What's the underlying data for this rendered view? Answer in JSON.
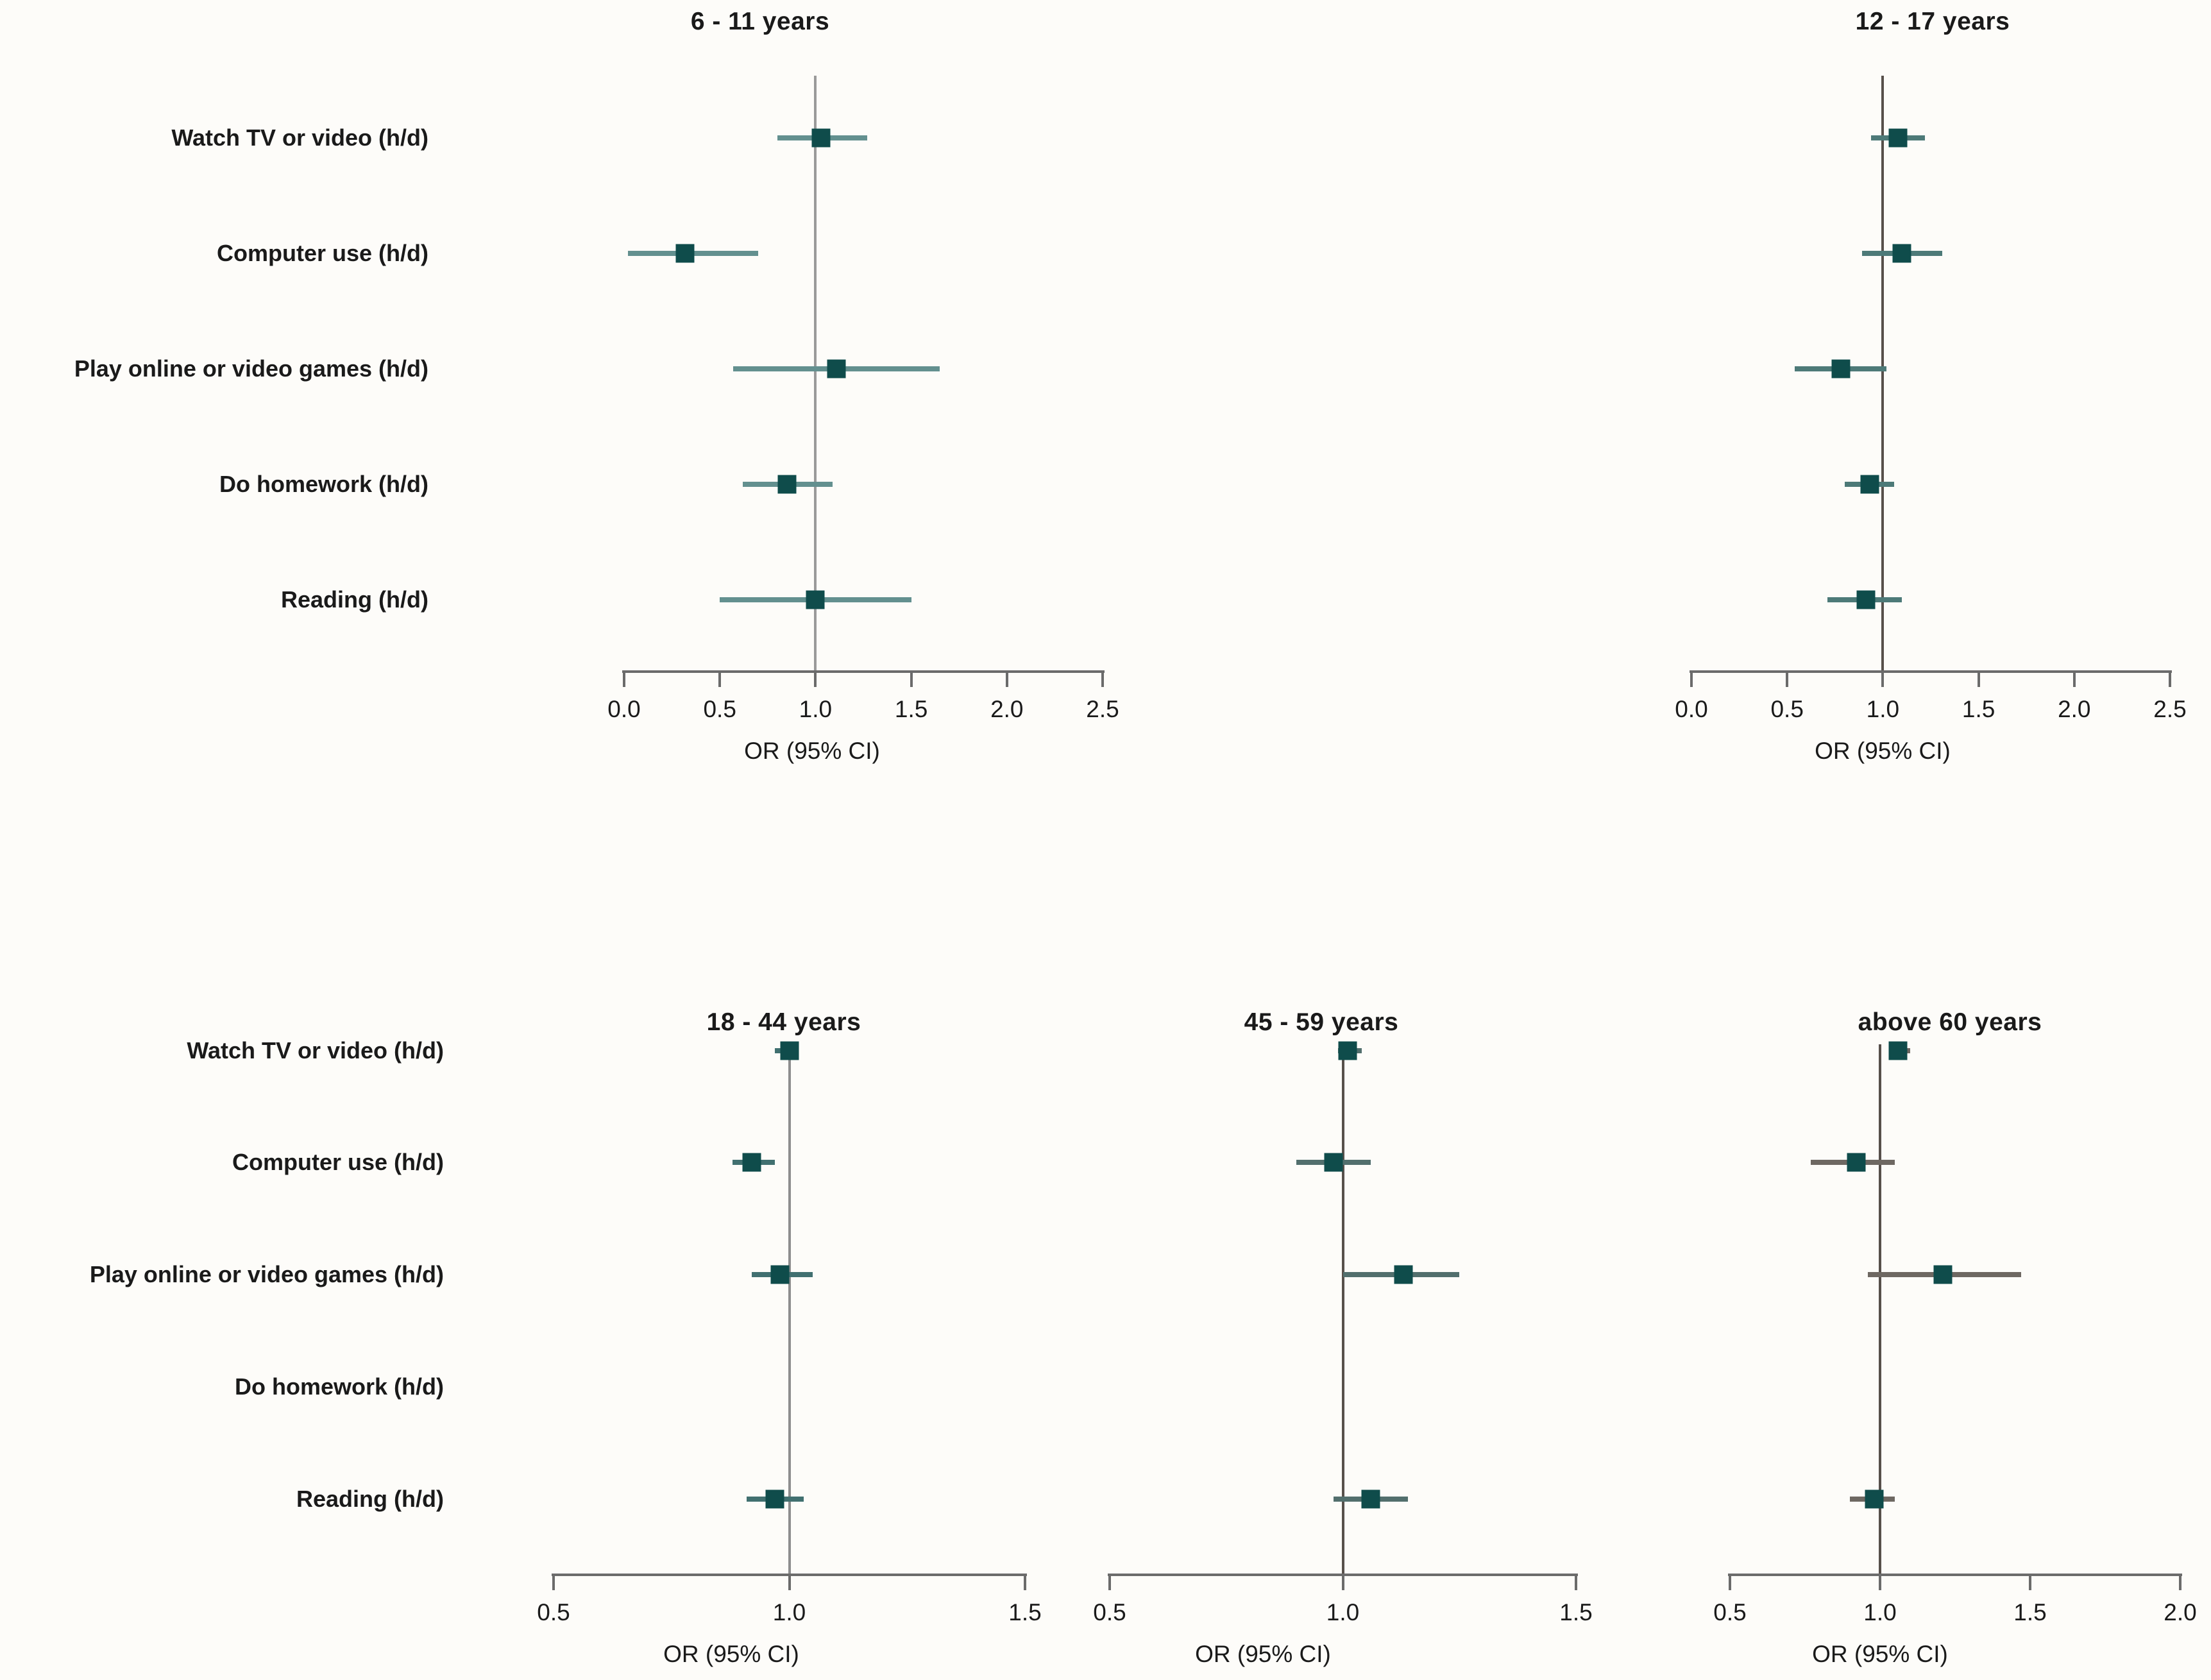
{
  "figure": {
    "background": "#fdfcf9",
    "marker_color": "#0f4c4b",
    "axis_color": "#6b6b6b",
    "text_color": "#1a1a1a"
  },
  "chart_data": {
    "type": "forest",
    "xlabel": "OR (95% CI)",
    "categories": [
      "Watch TV or video (h/d)",
      "Computer use (h/d)",
      "Play online or video games (h/d)",
      "Do homework (h/d)",
      "Reading (h/d)"
    ],
    "marker_color": "#0f4c4b",
    "panels": [
      {
        "title": "6 - 11 years",
        "xlim": [
          0.0,
          2.5
        ],
        "tick_values": [
          0,
          0.5,
          1,
          1.5,
          2,
          2.5
        ],
        "ticks": [
          "0.0",
          "0.5",
          "1.0",
          "1.5",
          "2.0",
          "2.5"
        ],
        "ref_value": 1.0,
        "show_row_labels": true,
        "refline_color": "#9a9a9a",
        "ci_color": "#63908f",
        "points": [
          {
            "or": 1.03,
            "ci_low": 0.8,
            "ci_high": 1.27
          },
          {
            "or": 0.32,
            "ci_low": 0.02,
            "ci_high": 0.7
          },
          {
            "or": 1.11,
            "ci_low": 0.57,
            "ci_high": 1.65
          },
          {
            "or": 0.85,
            "ci_low": 0.62,
            "ci_high": 1.09
          },
          {
            "or": 1.0,
            "ci_low": 0.5,
            "ci_high": 1.5
          }
        ]
      },
      {
        "title": "12 - 17 years",
        "xlim": [
          0.0,
          2.5
        ],
        "tick_values": [
          0,
          0.5,
          1,
          1.5,
          2,
          2.5
        ],
        "ticks": [
          "0.0",
          "0.5",
          "1.0",
          "1.5",
          "2.0",
          "2.5"
        ],
        "ref_value": 1.0,
        "show_row_labels": false,
        "refline_color": "#57504b",
        "ci_color": "#4d7a78",
        "points": [
          {
            "or": 1.08,
            "ci_low": 0.94,
            "ci_high": 1.22
          },
          {
            "or": 1.1,
            "ci_low": 0.89,
            "ci_high": 1.31
          },
          {
            "or": 0.78,
            "ci_low": 0.54,
            "ci_high": 1.02
          },
          {
            "or": 0.93,
            "ci_low": 0.8,
            "ci_high": 1.06
          },
          {
            "or": 0.91,
            "ci_low": 0.71,
            "ci_high": 1.1
          }
        ]
      },
      {
        "title": "18 - 44 years",
        "xlim": [
          0.5,
          1.5
        ],
        "tick_values": [
          0.5,
          1.0,
          1.5
        ],
        "ticks": [
          "0.5",
          "1.0",
          "1.5"
        ],
        "ref_value": 1.0,
        "show_row_labels": true,
        "refline_color": "#8e8e8e",
        "ci_color": "#417070",
        "points": [
          {
            "or": 1.0,
            "ci_low": 0.97,
            "ci_high": 1.02
          },
          {
            "or": 0.92,
            "ci_low": 0.88,
            "ci_high": 0.97
          },
          {
            "or": 0.98,
            "ci_low": 0.92,
            "ci_high": 1.05
          },
          {
            "or": null,
            "ci_low": null,
            "ci_high": null
          },
          {
            "or": 0.97,
            "ci_low": 0.91,
            "ci_high": 1.03
          }
        ]
      },
      {
        "title": "45 - 59 years",
        "xlim": [
          0.5,
          1.5
        ],
        "tick_values": [
          0.5,
          1.0,
          1.5
        ],
        "ticks": [
          "0.5",
          "1.0",
          "1.5"
        ],
        "ref_value": 1.0,
        "show_row_labels": false,
        "refline_color": "#57504b",
        "ci_color": "#526f6d",
        "points": [
          {
            "or": 1.01,
            "ci_low": 0.99,
            "ci_high": 1.04
          },
          {
            "or": 0.98,
            "ci_low": 0.9,
            "ci_high": 1.06
          },
          {
            "or": 1.13,
            "ci_low": 1.0,
            "ci_high": 1.25
          },
          {
            "or": null,
            "ci_low": null,
            "ci_high": null
          },
          {
            "or": 1.06,
            "ci_low": 0.98,
            "ci_high": 1.14
          }
        ]
      },
      {
        "title": "above 60 years",
        "xlim": [
          0.5,
          2.0
        ],
        "tick_values": [
          0.5,
          1.0,
          1.5,
          2.0
        ],
        "ticks": [
          "0.5",
          "1.0",
          "1.5",
          "2.0"
        ],
        "ref_value": 1.0,
        "show_row_labels": false,
        "refline_color": "#57504b",
        "ci_color": "#6e6862",
        "points": [
          {
            "or": 1.06,
            "ci_low": 1.03,
            "ci_high": 1.1
          },
          {
            "or": 0.92,
            "ci_low": 0.77,
            "ci_high": 1.05
          },
          {
            "or": 1.21,
            "ci_low": 0.96,
            "ci_high": 1.47
          },
          {
            "or": null,
            "ci_low": null,
            "ci_high": null
          },
          {
            "or": 0.98,
            "ci_low": 0.9,
            "ci_high": 1.05
          }
        ]
      }
    ]
  }
}
